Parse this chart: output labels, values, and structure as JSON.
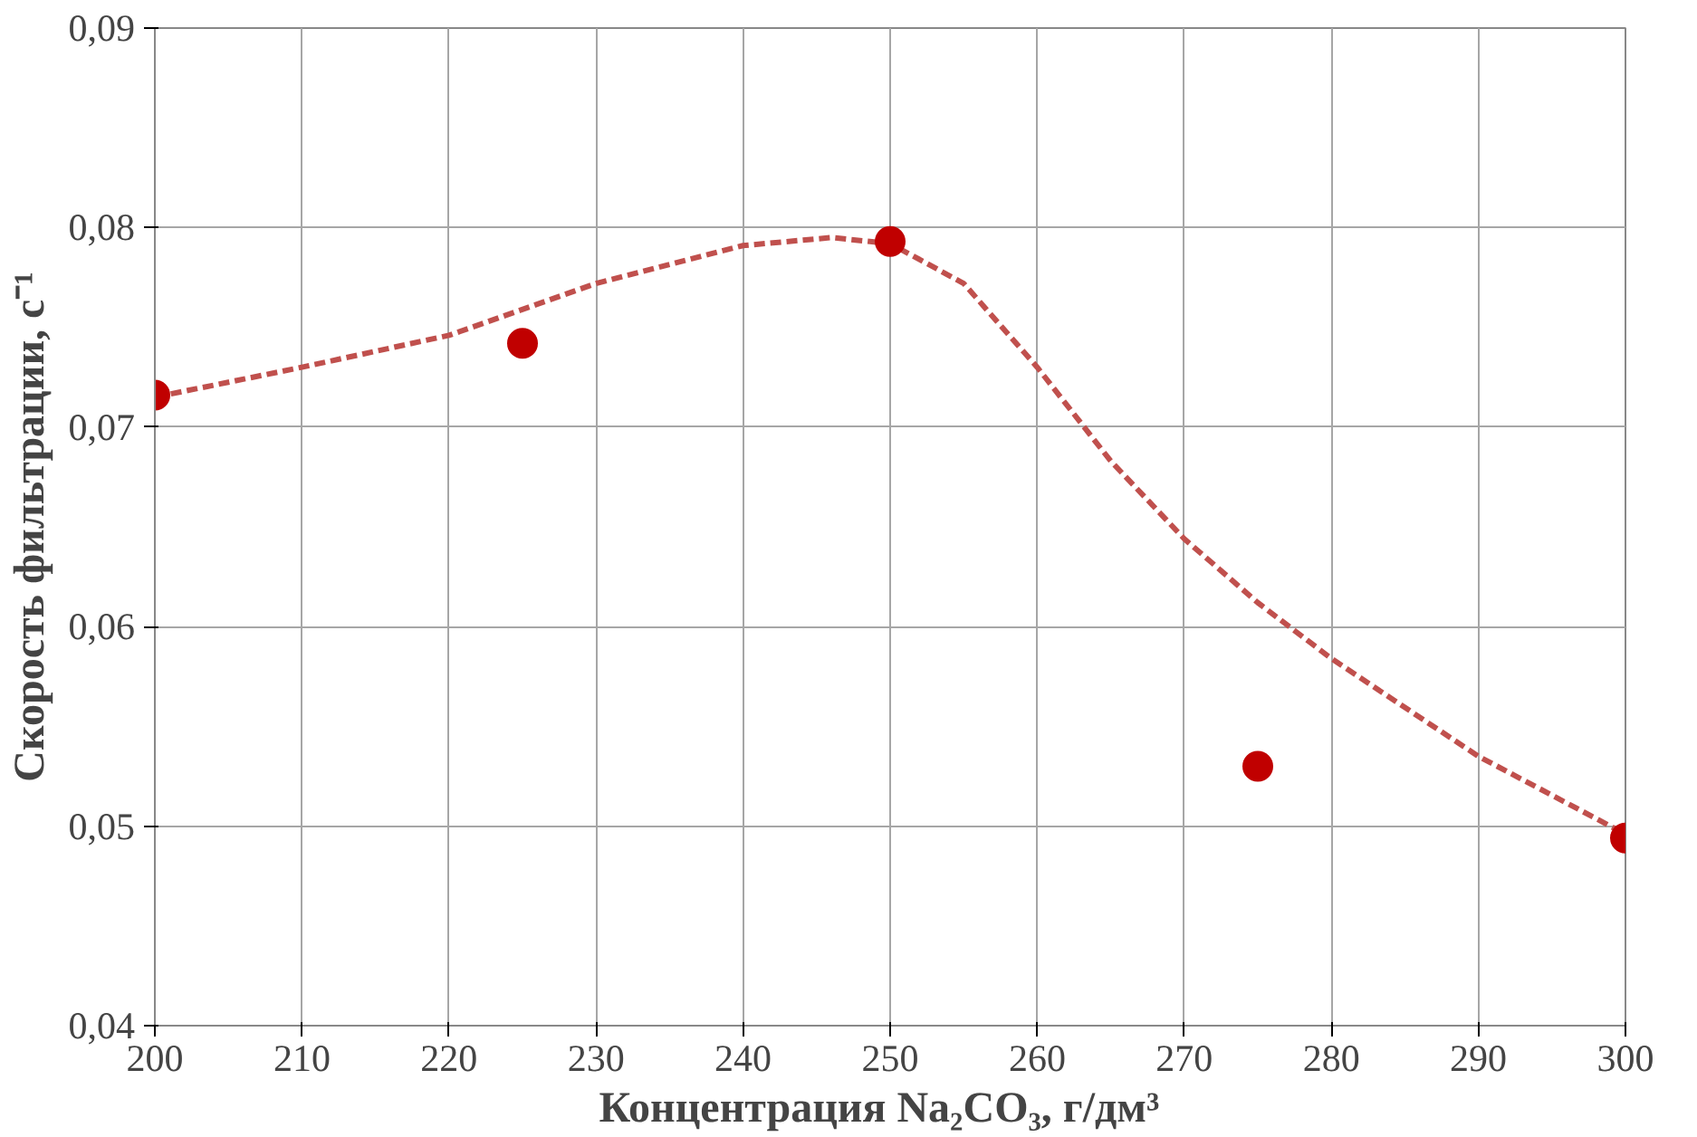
{
  "chart_data": {
    "type": "scatter",
    "xlabel": "Концентрация Na₂CO₃,   г/дм³",
    "ylabel": "Скорость фильтрации, с⁻¹",
    "xlim": [
      200,
      300
    ],
    "xticks": [
      200,
      210,
      220,
      230,
      240,
      250,
      260,
      270,
      280,
      290,
      300
    ],
    "ylim": [
      0.04,
      0.09
    ],
    "yticks": [
      {
        "value": 0.04,
        "label": "0,04"
      },
      {
        "value": 0.05,
        "label": "0,05"
      },
      {
        "value": 0.06,
        "label": "0,06"
      },
      {
        "value": 0.07,
        "label": "0,07"
      },
      {
        "value": 0.08,
        "label": "0,08"
      },
      {
        "value": 0.09,
        "label": "0,09"
      }
    ],
    "grid": true,
    "series": [
      {
        "type": "line",
        "color": "#c0504d",
        "line_style": "dashed",
        "marker": "none",
        "x": [
          200,
          210,
          220,
          230,
          240,
          246,
          250,
          255,
          260,
          265,
          270,
          275,
          280,
          290,
          300
        ],
        "values": [
          0.0715,
          0.073,
          0.0746,
          0.0772,
          0.0791,
          0.0795,
          0.0792,
          0.0772,
          0.073,
          0.0683,
          0.0644,
          0.0612,
          0.0584,
          0.0535,
          0.0496
        ]
      },
      {
        "color": "#c00000",
        "marker": "circle",
        "x": [
          200,
          225,
          250,
          275,
          300
        ],
        "values": [
          0.0716,
          0.0742,
          0.0793,
          0.053,
          0.0494
        ]
      }
    ]
  }
}
